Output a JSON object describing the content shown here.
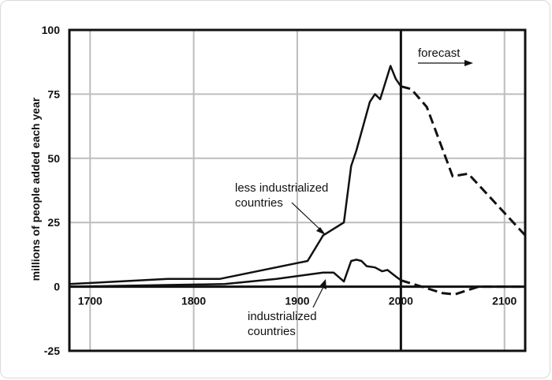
{
  "chart_data": {
    "type": "line",
    "xlabel": "",
    "ylabel": "millions of people added each year",
    "xlim": [
      1680,
      2120
    ],
    "ylim": [
      -25,
      100
    ],
    "x_ticks": [
      1700,
      1800,
      1900,
      2000,
      2100
    ],
    "y_ticks": [
      100,
      75,
      50,
      25,
      0,
      -25
    ],
    "grid": true,
    "forecast_start": 2000,
    "series": [
      {
        "points": [
          [
            1680,
            1
          ],
          [
            1775,
            3
          ],
          [
            1825,
            3
          ],
          [
            1910,
            10
          ],
          [
            1925,
            20
          ],
          [
            1945,
            25
          ],
          [
            1952,
            47
          ],
          [
            1957,
            53
          ],
          [
            1970,
            72
          ],
          [
            1975,
            75
          ],
          [
            1980,
            73
          ],
          [
            1990,
            86
          ],
          [
            1995,
            81
          ],
          [
            2000,
            78
          ]
        ],
        "forecast": [
          [
            2000,
            78
          ],
          [
            2010,
            77
          ],
          [
            2025,
            70
          ],
          [
            2050,
            43
          ],
          [
            2065,
            44
          ],
          [
            2120,
            20
          ]
        ]
      },
      {
        "points": [
          [
            1680,
            0
          ],
          [
            1830,
            1
          ],
          [
            1880,
            3
          ],
          [
            1925,
            5.5
          ],
          [
            1935,
            5.5
          ],
          [
            1945,
            2
          ],
          [
            1952,
            10
          ],
          [
            1957,
            10.5
          ],
          [
            1962,
            10
          ],
          [
            1967,
            8
          ],
          [
            1975,
            7.5
          ],
          [
            1982,
            6
          ],
          [
            1987,
            6.5
          ],
          [
            1995,
            4
          ],
          [
            2000,
            2.5
          ]
        ],
        "forecast": [
          [
            2000,
            2.5
          ],
          [
            2020,
            0
          ],
          [
            2040,
            -2.5
          ],
          [
            2052,
            -3
          ],
          [
            2075,
            0
          ],
          [
            2120,
            0
          ]
        ]
      }
    ],
    "annotations": {
      "forecast": "forecast",
      "less_industrialized": [
        "less industrialized",
        "countries"
      ],
      "industrialized": [
        "industrialized",
        "countries"
      ]
    }
  }
}
